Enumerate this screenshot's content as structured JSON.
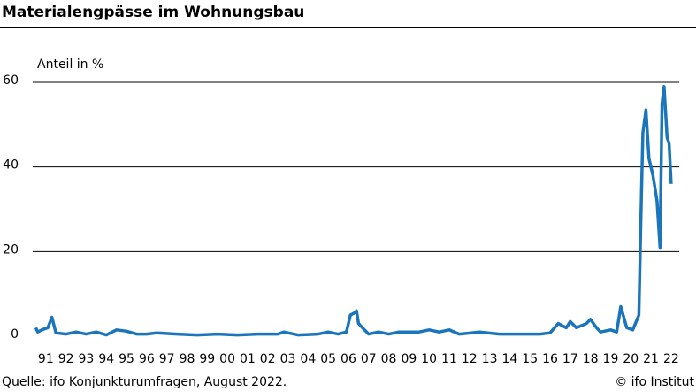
{
  "chart_data": {
    "type": "line",
    "title": "Materialengpässe im Wohnungsbau",
    "y_label": "Anteil in %",
    "source": "Quelle: ifo Konjunkturumfragen, August 2022.",
    "credit": "© ifo Institut",
    "grid": true,
    "ylim": [
      0,
      62
    ],
    "yticks": [
      0,
      20,
      40,
      60
    ],
    "xlim": [
      1990.85,
      2022.9
    ],
    "xticks": [
      {
        "value": 1991.5,
        "label": "91"
      },
      {
        "value": 1992.5,
        "label": "92"
      },
      {
        "value": 1993.5,
        "label": "93"
      },
      {
        "value": 1994.5,
        "label": "94"
      },
      {
        "value": 1995.5,
        "label": "95"
      },
      {
        "value": 1996.5,
        "label": "96"
      },
      {
        "value": 1997.5,
        "label": "97"
      },
      {
        "value": 1998.5,
        "label": "98"
      },
      {
        "value": 1999.5,
        "label": "99"
      },
      {
        "value": 2000.5,
        "label": "00"
      },
      {
        "value": 2001.5,
        "label": "01"
      },
      {
        "value": 2002.5,
        "label": "02"
      },
      {
        "value": 2003.5,
        "label": "03"
      },
      {
        "value": 2004.5,
        "label": "04"
      },
      {
        "value": 2005.5,
        "label": "05"
      },
      {
        "value": 2006.5,
        "label": "06"
      },
      {
        "value": 2007.5,
        "label": "07"
      },
      {
        "value": 2008.5,
        "label": "08"
      },
      {
        "value": 2009.5,
        "label": "09"
      },
      {
        "value": 2010.5,
        "label": "10"
      },
      {
        "value": 2011.5,
        "label": "11"
      },
      {
        "value": 2012.5,
        "label": "12"
      },
      {
        "value": 2013.5,
        "label": "13"
      },
      {
        "value": 2014.5,
        "label": "14"
      },
      {
        "value": 2015.5,
        "label": "15"
      },
      {
        "value": 2016.5,
        "label": "16"
      },
      {
        "value": 2017.5,
        "label": "17"
      },
      {
        "value": 2018.5,
        "label": "18"
      },
      {
        "value": 2019.5,
        "label": "19"
      },
      {
        "value": 2020.5,
        "label": "20"
      },
      {
        "value": 2021.5,
        "label": "21"
      },
      {
        "value": 2022.5,
        "label": "22"
      }
    ],
    "x": [
      1991.0,
      1991.1,
      1991.3,
      1991.6,
      1991.8,
      1992.0,
      1992.5,
      1993.0,
      1993.5,
      1994.0,
      1994.5,
      1995.0,
      1995.5,
      1996.0,
      1996.5,
      1997.0,
      1998.0,
      1999.0,
      2000.0,
      2001.0,
      2002.0,
      2003.0,
      2003.3,
      2004.0,
      2005.0,
      2005.5,
      2006.0,
      2006.4,
      2006.6,
      2006.8,
      2006.9,
      2007.0,
      2007.2,
      2007.5,
      2008.0,
      2008.5,
      2009.0,
      2010.0,
      2010.5,
      2011.0,
      2011.5,
      2012.0,
      2013.0,
      2014.0,
      2015.0,
      2016.0,
      2016.5,
      2016.9,
      2017.3,
      2017.5,
      2017.8,
      2018.3,
      2018.5,
      2018.8,
      2019.0,
      2019.5,
      2019.8,
      2020.0,
      2020.3,
      2020.6,
      2020.9,
      2021.0,
      2021.1,
      2021.25,
      2021.4,
      2021.6,
      2021.8,
      2021.95,
      2022.05,
      2022.15,
      2022.3,
      2022.4,
      2022.5
    ],
    "series": [
      {
        "name": "Anteil",
        "color": "#1a75bb",
        "values": [
          2,
          1,
          1.5,
          2,
          4.5,
          0.8,
          0.5,
          1,
          0.5,
          1,
          0.3,
          1.5,
          1.2,
          0.5,
          0.5,
          0.8,
          0.5,
          0.3,
          0.5,
          0.3,
          0.5,
          0.5,
          1,
          0.3,
          0.5,
          1,
          0.5,
          1,
          5,
          5.5,
          6,
          3,
          2,
          0.5,
          1,
          0.5,
          1,
          1,
          1.5,
          1,
          1.5,
          0.5,
          1,
          0.5,
          0.5,
          0.5,
          0.8,
          3,
          2,
          3.5,
          2,
          3,
          4,
          2,
          1,
          1.5,
          1,
          7,
          2,
          1.5,
          5,
          28,
          48,
          53.5,
          42,
          38,
          32,
          21,
          55,
          59,
          47,
          45.5,
          36
        ]
      }
    ]
  }
}
